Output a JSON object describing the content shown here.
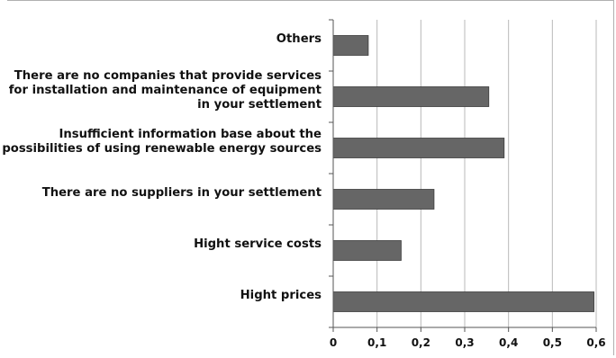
{
  "chart_data": {
    "type": "bar",
    "orientation": "horizontal",
    "categories": [
      "Hight prices",
      "Hight service costs",
      "There are no suppliers in your settlement",
      "Insufficient information base about the possibilities of using renewable energy sources",
      "There are no companies that provide services for installation and maintenance of equipment in your settlement",
      "Others"
    ],
    "category_lines": [
      [
        "Hight prices"
      ],
      [
        "Hight service costs"
      ],
      [
        "There are no suppliers in your settlement"
      ],
      [
        "Insufficient information base about the",
        "possibilities of using renewable energy sources"
      ],
      [
        "There are no companies that provide services",
        "for installation and maintenance of equipment",
        "in your settlement"
      ],
      [
        "Others"
      ]
    ],
    "values": [
      0.595,
      0.155,
      0.23,
      0.39,
      0.355,
      0.08
    ],
    "xlim": [
      0,
      0.6
    ],
    "xticks": [
      0,
      0.1,
      0.2,
      0.3,
      0.4,
      0.5,
      0.6
    ],
    "xtick_labels": [
      "0",
      "0,1",
      "0,2",
      "0,3",
      "0,4",
      "0,5",
      "0,6"
    ],
    "grid": true,
    "bar_color": "#666666",
    "title": "",
    "xlabel": "",
    "ylabel": ""
  }
}
